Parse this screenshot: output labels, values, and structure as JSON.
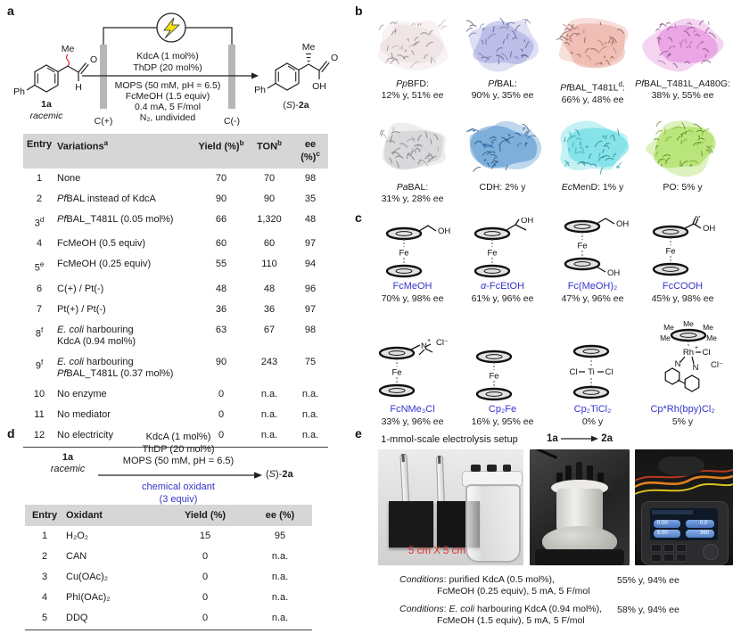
{
  "panel_a": {
    "label": "a",
    "scheme": {
      "substrate": {
        "id": "1a",
        "note": "racemic",
        "me": "Me",
        "ph": "Ph",
        "o": "O",
        "h": "H"
      },
      "product": {
        "me": "Me",
        "ph": "Ph",
        "o": "O",
        "oh": "OH",
        "label": {
          "p1": "(",
          "p2": "S",
          "p3": ")-",
          "p4": "2a"
        }
      },
      "anode": "C(+)",
      "cathode": "C(-)",
      "above": [
        "KdcA (1 mol%)",
        "ThDP (20 mol%)"
      ],
      "below": [
        "MOPS (50 mM, pH = 6.5)",
        "FcMeOH (1.5 equiv)",
        "0.4 mA, 5 F/mol",
        "N₂, undivided"
      ]
    },
    "table": {
      "headers": [
        "Entry",
        "Variations^a^",
        "Yield (%)^b^",
        "TON^b^",
        "ee (%)^c^"
      ],
      "rows": [
        {
          "entry": "1",
          "variation": "None",
          "yield": "70",
          "ton": "70",
          "ee": "98"
        },
        {
          "entry": "2",
          "variation": "*Pf*BAL instead of KdcA",
          "yield": "90",
          "ton": "90",
          "ee": "35"
        },
        {
          "entry": "3^d^",
          "variation": "*Pf*BAL_T481L (0.05 mol%)",
          "yield": "66",
          "ton": "1,320",
          "ee": "48"
        },
        {
          "entry": "4",
          "variation": "FcMeOH (0.5 equiv)",
          "yield": "60",
          "ton": "60",
          "ee": "97"
        },
        {
          "entry": "5^e^",
          "variation": "FcMeOH (0.25 equiv)",
          "yield": "55",
          "ton": "110",
          "ee": "94"
        },
        {
          "entry": "6",
          "variation": "C(+) / Pt(-)",
          "yield": "48",
          "ton": "48",
          "ee": "96"
        },
        {
          "entry": "7",
          "variation": "Pt(+) / Pt(-)",
          "yield": "36",
          "ton": "36",
          "ee": "97"
        },
        {
          "entry": "8^f^",
          "variation": "*E. coli* harbouring\nKdcA (0.94 mol%)",
          "yield": "63",
          "ton": "67",
          "ee": "98"
        },
        {
          "entry": "9^f^",
          "variation": "*E. coli* harbouring\n*Pf*BAL_T481L (0.37 mol%)",
          "yield": "90",
          "ton": "243",
          "ee": "75"
        },
        {
          "entry": "10",
          "variation": "No enzyme",
          "yield": "0",
          "ton": "n.a.",
          "ee": "n.a."
        },
        {
          "entry": "11",
          "variation": "No mediator",
          "yield": "0",
          "ton": "n.a.",
          "ee": "n.a."
        },
        {
          "entry": "12",
          "variation": "No electricity",
          "yield": "0",
          "ton": "n.a.",
          "ee": "n.a."
        }
      ]
    }
  },
  "panel_b": {
    "label": "b",
    "proteins": [
      {
        "lines": [
          "*Pp*BFD:",
          "12% y, 51% ee"
        ],
        "color": "#e7d5d7"
      },
      {
        "lines": [
          "*Pf*BAL:",
          "90% y, 35% ee"
        ],
        "color": "#9396d9"
      },
      {
        "lines": [
          "*Pf*BAL_T481L^d^:",
          "66% y, 48% ee"
        ],
        "color": "#e49688"
      },
      {
        "lines": [
          "*Pf*BAL_T481L_A480G:",
          "38% y, 55% ee"
        ],
        "color": "#df72d5"
      },
      {
        "lines": [
          "*Pa*BAL:",
          "31% y, 28% ee"
        ],
        "color": "#c2c2c6"
      },
      {
        "lines": [
          "CDH: 2% y"
        ],
        "color": "#2f7ec5"
      },
      {
        "lines": [
          "*Ec*MenD: 1% y"
        ],
        "color": "#3ad2db"
      },
      {
        "lines": [
          "PO: 5% y"
        ],
        "color": "#90d42c"
      }
    ]
  },
  "panel_c": {
    "label": "c",
    "mediators": [
      {
        "name": "FcMeOH",
        "stats": "70% y, 98% ee",
        "type": "fc_meoh"
      },
      {
        "name": "*α*-FcEtOH",
        "stats": "61% y, 96% ee",
        "type": "fc_etoh"
      },
      {
        "name": "Fc(MeOH)₂",
        "stats": "47% y, 96% ee",
        "type": "fc_meoh2"
      },
      {
        "name": "FcCOOH",
        "stats": "45% y, 98% ee",
        "type": "fc_cooh"
      },
      {
        "name": "FcNMe₃Cl",
        "stats": "33% y, 96% ee",
        "type": "fc_nme3"
      },
      {
        "name": "Cp₂Fe",
        "stats": "16% y, 95% ee",
        "type": "fc"
      },
      {
        "name": "Cp₂TiCl₂",
        "stats": "0% y",
        "type": "ticl2"
      },
      {
        "name": "Cp*Rh(bpy)Cl₂",
        "stats": "5% y",
        "type": "cprh"
      }
    ]
  },
  "panel_d": {
    "label": "d",
    "scheme": {
      "substrate_id": "1a",
      "substrate_note": "racemic",
      "above": [
        "KdcA (1 mol%)",
        "ThDP (20 mol%)",
        "MOPS (50 mM, pH = 6.5)"
      ],
      "below": [
        "chemical oxidant",
        "(3 equiv)"
      ],
      "product_pre": "(*S*)-",
      "product_id": "2a"
    },
    "table": {
      "headers": [
        "Entry",
        "Oxidant",
        "Yield (%)",
        "ee (%)"
      ],
      "rows": [
        {
          "entry": "1",
          "oxidant": "H₂O₂",
          "yield": "15",
          "ee": "95"
        },
        {
          "entry": "2",
          "oxidant": "CAN",
          "yield": "0",
          "ee": "n.a."
        },
        {
          "entry": "3",
          "oxidant": "Cu(OAc)₂",
          "yield": "0",
          "ee": "n.a."
        },
        {
          "entry": "4",
          "oxidant": "PhI(OAc)₂",
          "yield": "0",
          "ee": "n.a."
        },
        {
          "entry": "5",
          "oxidant": "DDQ",
          "yield": "0",
          "ee": "n.a."
        }
      ]
    }
  },
  "panel_e": {
    "label": "e",
    "setup_title": "1-mmol-scale electrolysis setup",
    "reaction": {
      "from": "1a",
      "to": "2a"
    },
    "scale_label": "5 cm X 5 cm",
    "device_screen": [
      "0.00",
      "0.0",
      "5.00",
      "360"
    ],
    "conditions": [
      {
        "line1": "*Conditions*: purified KdcA (0.5 mol%),",
        "line2": "FcMeOH (0.25 equiv), 5 mA, 5 F/mol",
        "result": "55% y, 94% ee"
      },
      {
        "line1": "*Conditions*: *E. coli* harbouring KdcA (0.94 mol%),",
        "line2": "FcMeOH (1.5 equiv), 5 mA, 5 F/mol",
        "result": "58% y, 94% ee"
      }
    ]
  },
  "colors": {
    "accent_blue": "#3534c9",
    "accent_red": "#d93025",
    "table_header_bg": "#d6d6d6",
    "electrode_gray": "#b6b6b6",
    "bolt_yellow": "#f2e114"
  }
}
